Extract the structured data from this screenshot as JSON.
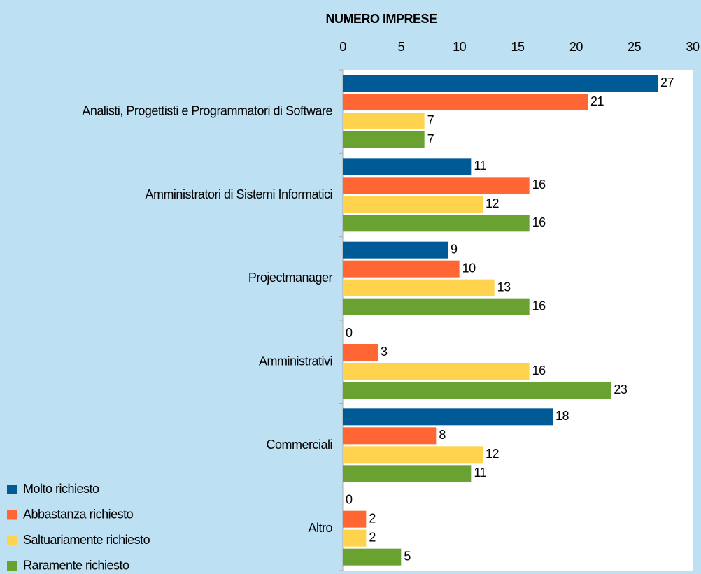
{
  "chart_data": {
    "type": "barh",
    "x_label": "NUMERO IMPRESE",
    "categories": [
      "Analisti, Progettisti e Programmatori di Software",
      "Amministratori di Sistemi Informatici",
      "Projectmanager",
      "Amministrativi",
      "Commerciali",
      "Altro"
    ],
    "series": [
      {
        "name": "Molto richiesto",
        "color": "#005a96",
        "values": [
          27,
          11,
          9,
          0,
          18,
          0
        ]
      },
      {
        "name": "Abbastanza richiesto",
        "color": "#ff6633",
        "values": [
          21,
          16,
          10,
          3,
          8,
          2
        ]
      },
      {
        "name": "Saltuariamente richiesto",
        "color": "#ffd34d",
        "values": [
          7,
          12,
          13,
          16,
          12,
          2
        ]
      },
      {
        "name": "Raramente richiesto",
        "color": "#6aa232",
        "values": [
          7,
          16,
          16,
          23,
          11,
          5
        ]
      }
    ],
    "xlim": [
      0,
      30
    ],
    "xticks": [
      0,
      5,
      10,
      15,
      20,
      25,
      30
    ],
    "grid": false,
    "legend": "bottom-left"
  }
}
